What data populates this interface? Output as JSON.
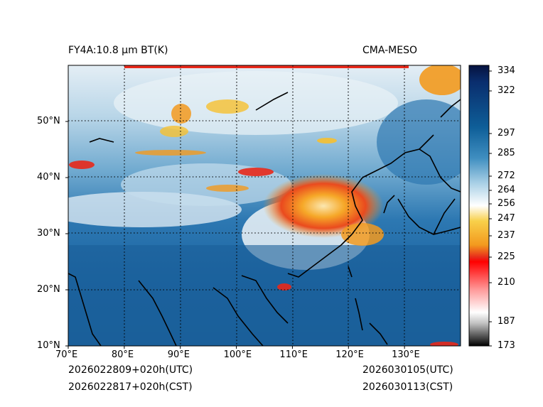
{
  "title_left": "FY4A:10.8 µm BT(K)",
  "title_right": "CMA-MESO",
  "footer": {
    "init_utc": "2026022809+020h(UTC)",
    "init_cst": "2026022817+020h(CST)",
    "valid_utc": "2026030105(UTC)",
    "valid_cst": "2026030113(CST)"
  },
  "axes": {
    "lon_range": [
      70,
      140
    ],
    "lat_range": [
      10,
      60
    ],
    "x_ticks": [
      {
        "value": 70,
        "label": "70°E"
      },
      {
        "value": 80,
        "label": "80°E"
      },
      {
        "value": 90,
        "label": "90°E"
      },
      {
        "value": 100,
        "label": "100°E"
      },
      {
        "value": 110,
        "label": "110°E"
      },
      {
        "value": 120,
        "label": "120°E"
      },
      {
        "value": 130,
        "label": "130°E"
      }
    ],
    "y_ticks": [
      {
        "value": 10,
        "label": "10°N"
      },
      {
        "value": 20,
        "label": "20°N"
      },
      {
        "value": 30,
        "label": "30°N"
      },
      {
        "value": 40,
        "label": "40°N"
      },
      {
        "value": 50,
        "label": "50°N"
      }
    ]
  },
  "colorbar": {
    "range": [
      173,
      338
    ],
    "ticks": [
      {
        "value": 334,
        "label": "334"
      },
      {
        "value": 322,
        "label": "322"
      },
      {
        "value": 297,
        "label": "297"
      },
      {
        "value": 285,
        "label": "285"
      },
      {
        "value": 272,
        "label": "272"
      },
      {
        "value": 264,
        "label": "264"
      },
      {
        "value": 256,
        "label": "256"
      },
      {
        "value": 247,
        "label": "247"
      },
      {
        "value": 237,
        "label": "237"
      },
      {
        "value": 225,
        "label": "225"
      },
      {
        "value": 210,
        "label": "210"
      },
      {
        "value": 187,
        "label": "187"
      },
      {
        "value": 173,
        "label": "173"
      }
    ]
  },
  "colors": {
    "deep_blue": "#0b4d8c",
    "mid_blue": "#1f6fa8",
    "light_blue": "#8cc0dc",
    "pale": "#e6f0f6",
    "orange": "#f39a1e",
    "yellow": "#f6c030",
    "red": "#e8281a"
  }
}
